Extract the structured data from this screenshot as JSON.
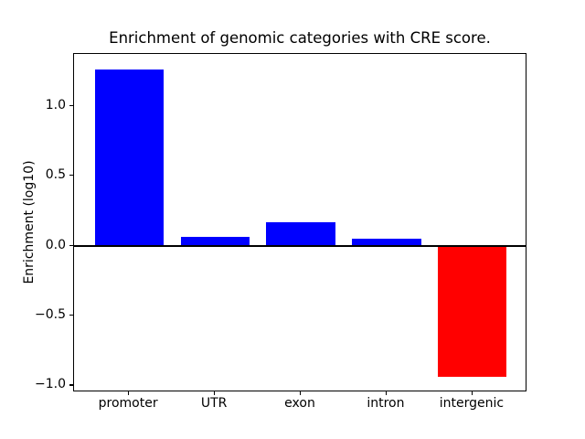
{
  "chart_data": {
    "type": "bar",
    "title": "Enrichment of genomic categories with CRE score.",
    "xlabel": "",
    "ylabel": "Enrichment (log10)",
    "categories": [
      "promoter",
      "UTR",
      "exon",
      "intron",
      "intergenic"
    ],
    "values": [
      1.26,
      0.06,
      0.17,
      0.05,
      -0.94
    ],
    "bar_colors": [
      "#0000ff",
      "#0000ff",
      "#0000ff",
      "#0000ff",
      "#ff0000"
    ],
    "positive_color": "#0000ff",
    "negative_color": "#ff0000",
    "yticks": [
      {
        "value": 1.0,
        "label": "1.0"
      },
      {
        "value": 0.5,
        "label": "0.5"
      },
      {
        "value": 0.0,
        "label": "0.0"
      },
      {
        "value": -0.5,
        "label": "−0.5"
      },
      {
        "value": -1.0,
        "label": "−1.0"
      }
    ],
    "ylim": [
      -1.05,
      1.37
    ],
    "zero_line": true,
    "grid": false,
    "legend_position": "none",
    "background_color": "#ffffff"
  }
}
